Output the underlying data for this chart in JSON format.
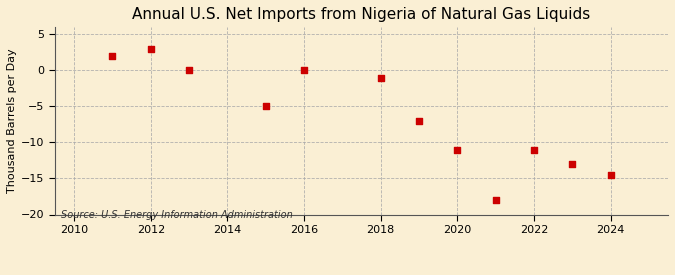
{
  "title": "Annual U.S. Net Imports from Nigeria of Natural Gas Liquids",
  "ylabel": "Thousand Barrels per Day",
  "source": "Source: U.S. Energy Information Administration",
  "years": [
    2011,
    2012,
    2013,
    2015,
    2016,
    2018,
    2019,
    2020,
    2021,
    2022,
    2023,
    2024
  ],
  "values": [
    2.0,
    3.0,
    0.0,
    -5.0,
    0.0,
    -1.0,
    -7.0,
    -11.0,
    -18.0,
    -11.0,
    -13.0,
    -14.5
  ],
  "xlim": [
    2009.5,
    2025.5
  ],
  "ylim": [
    -20,
    6
  ],
  "yticks": [
    5,
    0,
    -5,
    -10,
    -15,
    -20
  ],
  "xticks": [
    2010,
    2012,
    2014,
    2016,
    2018,
    2020,
    2022,
    2024
  ],
  "marker_color": "#cc0000",
  "marker": "s",
  "marker_size": 4,
  "bg_color": "#faefd4",
  "grid_color": "#aaaaaa",
  "title_fontsize": 11,
  "label_fontsize": 8,
  "tick_fontsize": 8,
  "source_fontsize": 7
}
